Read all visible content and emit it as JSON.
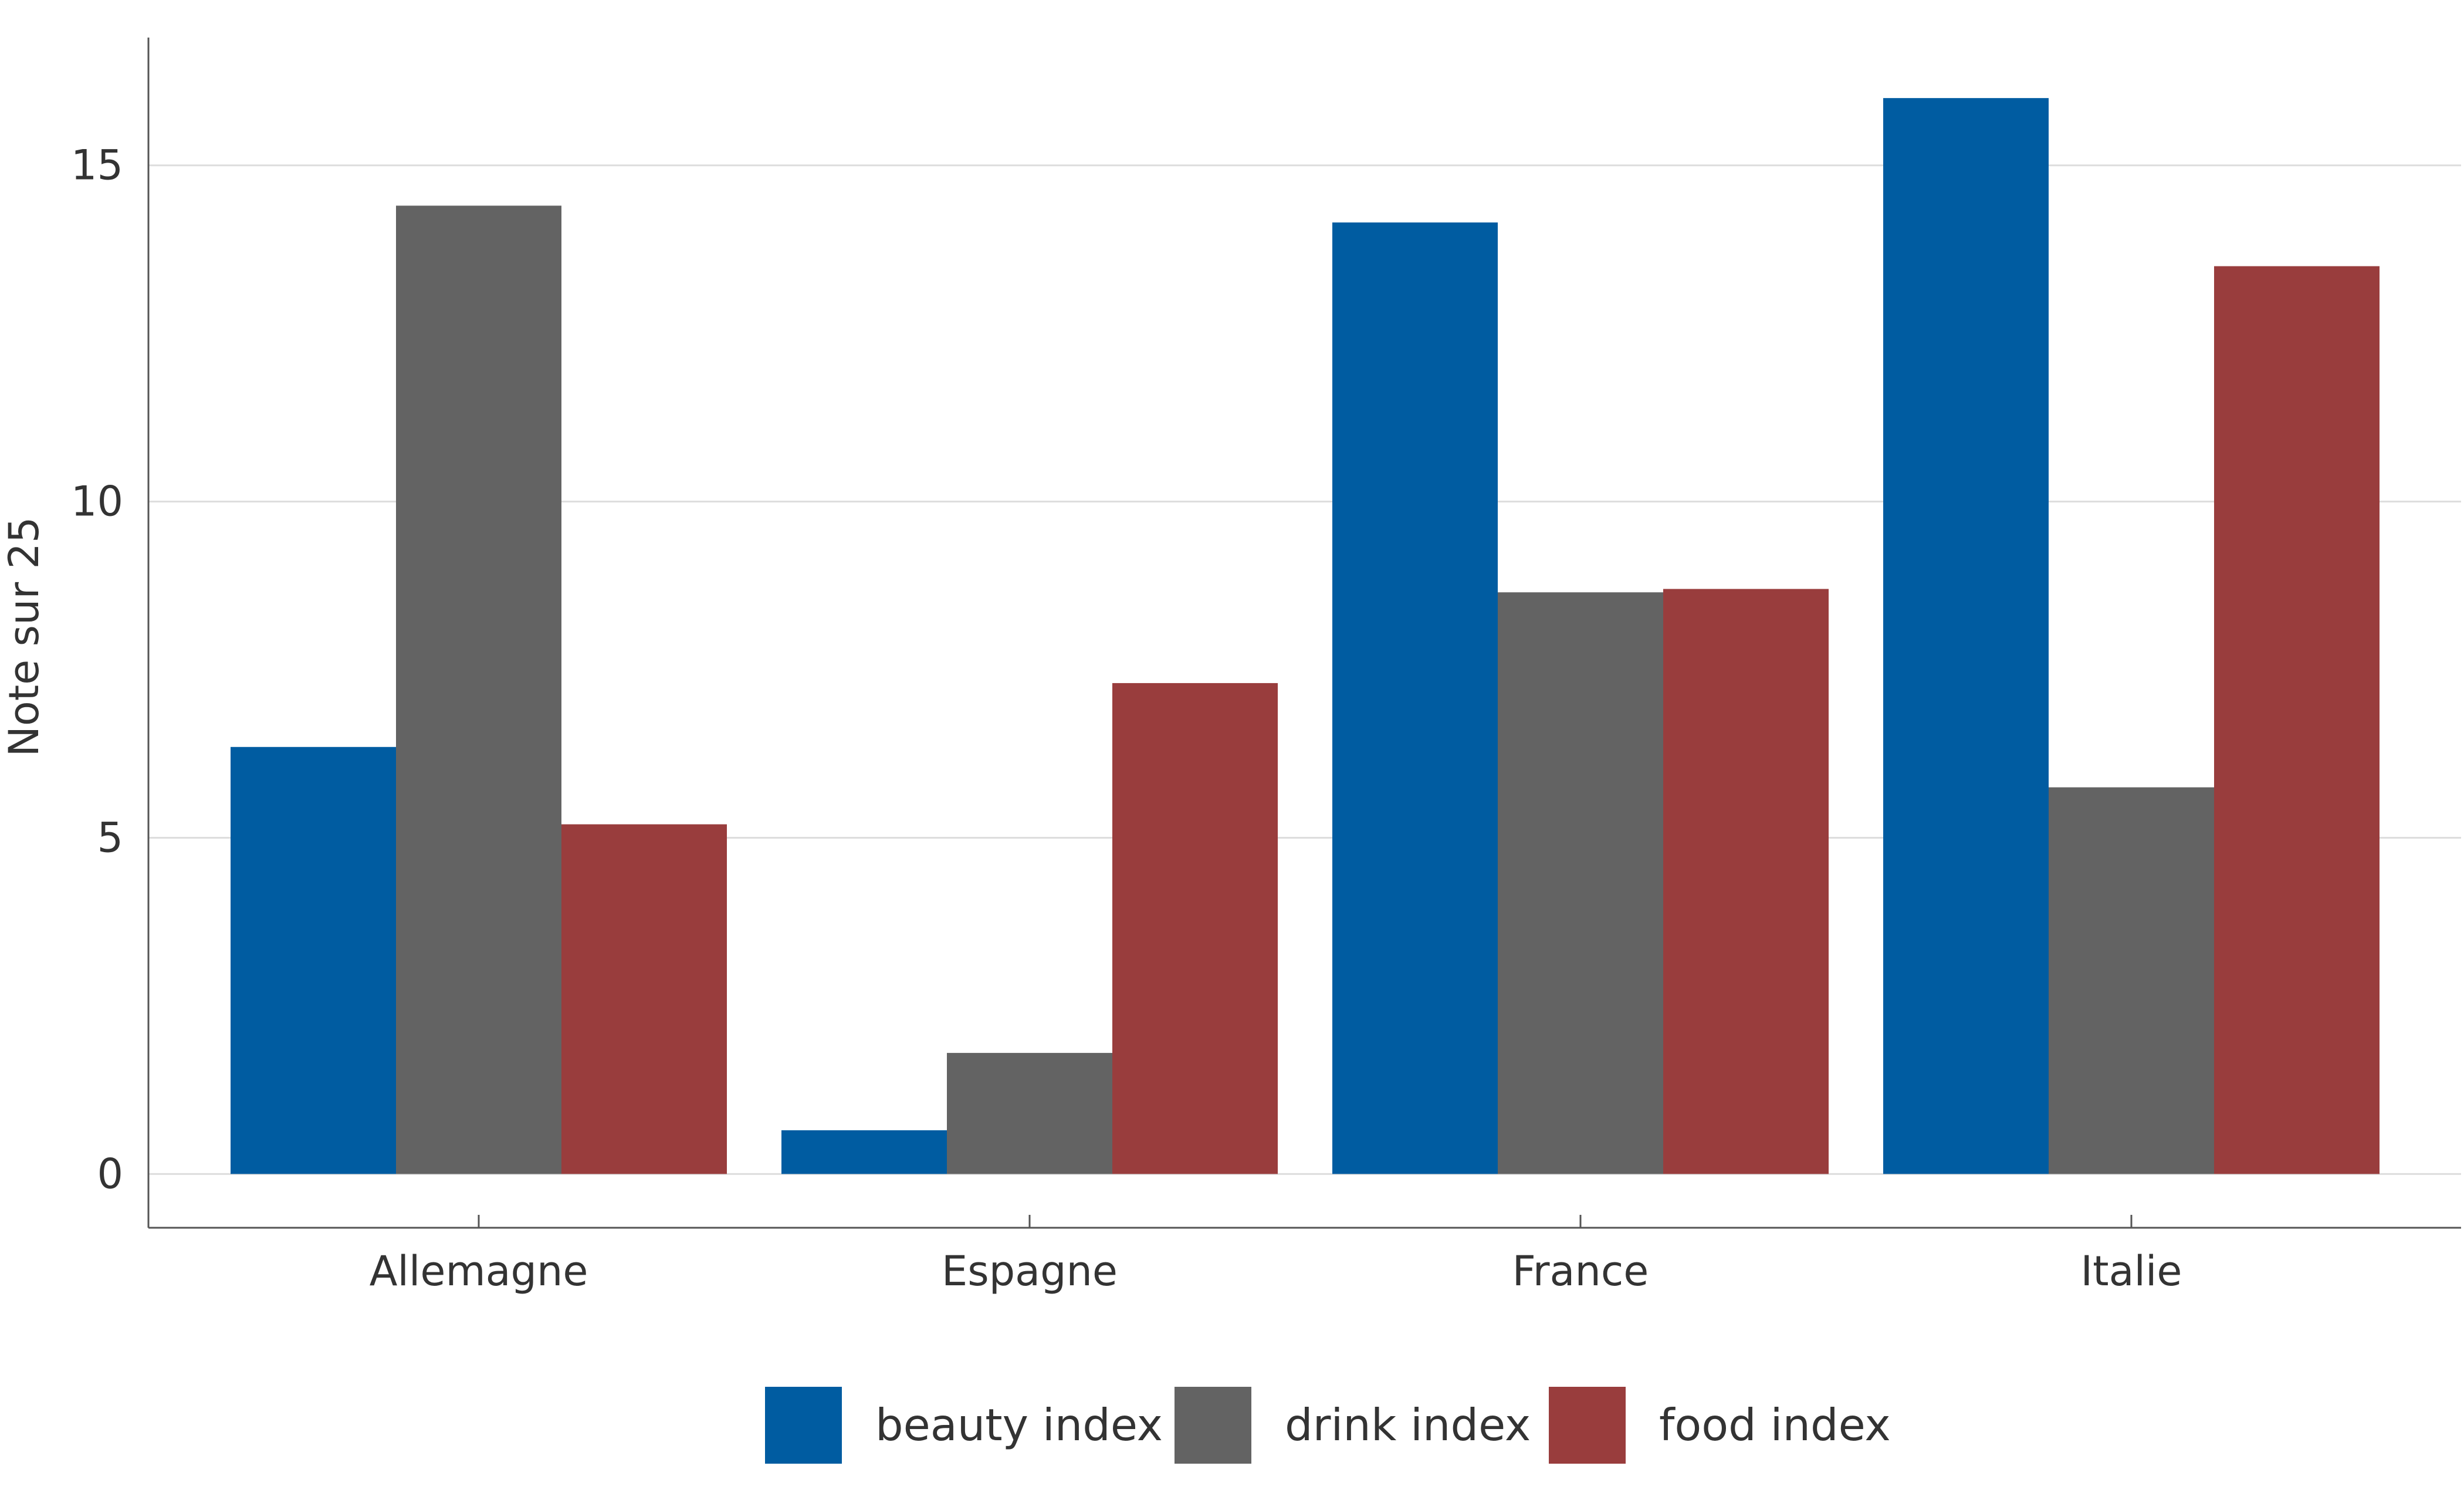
{
  "chart_data": {
    "type": "bar",
    "ylabel": "Note sur 25",
    "xlabel": "",
    "categories": [
      "Allemagne",
      "Espagne",
      "France",
      "Italie"
    ],
    "series": [
      {
        "name": "beauty index",
        "color": "#005ca1",
        "values": [
          6.35,
          0.65,
          14.15,
          16.0
        ]
      },
      {
        "name": "drink index",
        "color": "#636363",
        "values": [
          14.4,
          1.8,
          8.65,
          5.75
        ]
      },
      {
        "name": "food index",
        "color": "#993d3d",
        "values": [
          5.2,
          7.3,
          8.7,
          13.5
        ]
      }
    ],
    "ylim": [
      -0.8,
      16.9
    ],
    "yticks": [
      0,
      5,
      10,
      15
    ],
    "grid": true,
    "legend": "bottom"
  }
}
